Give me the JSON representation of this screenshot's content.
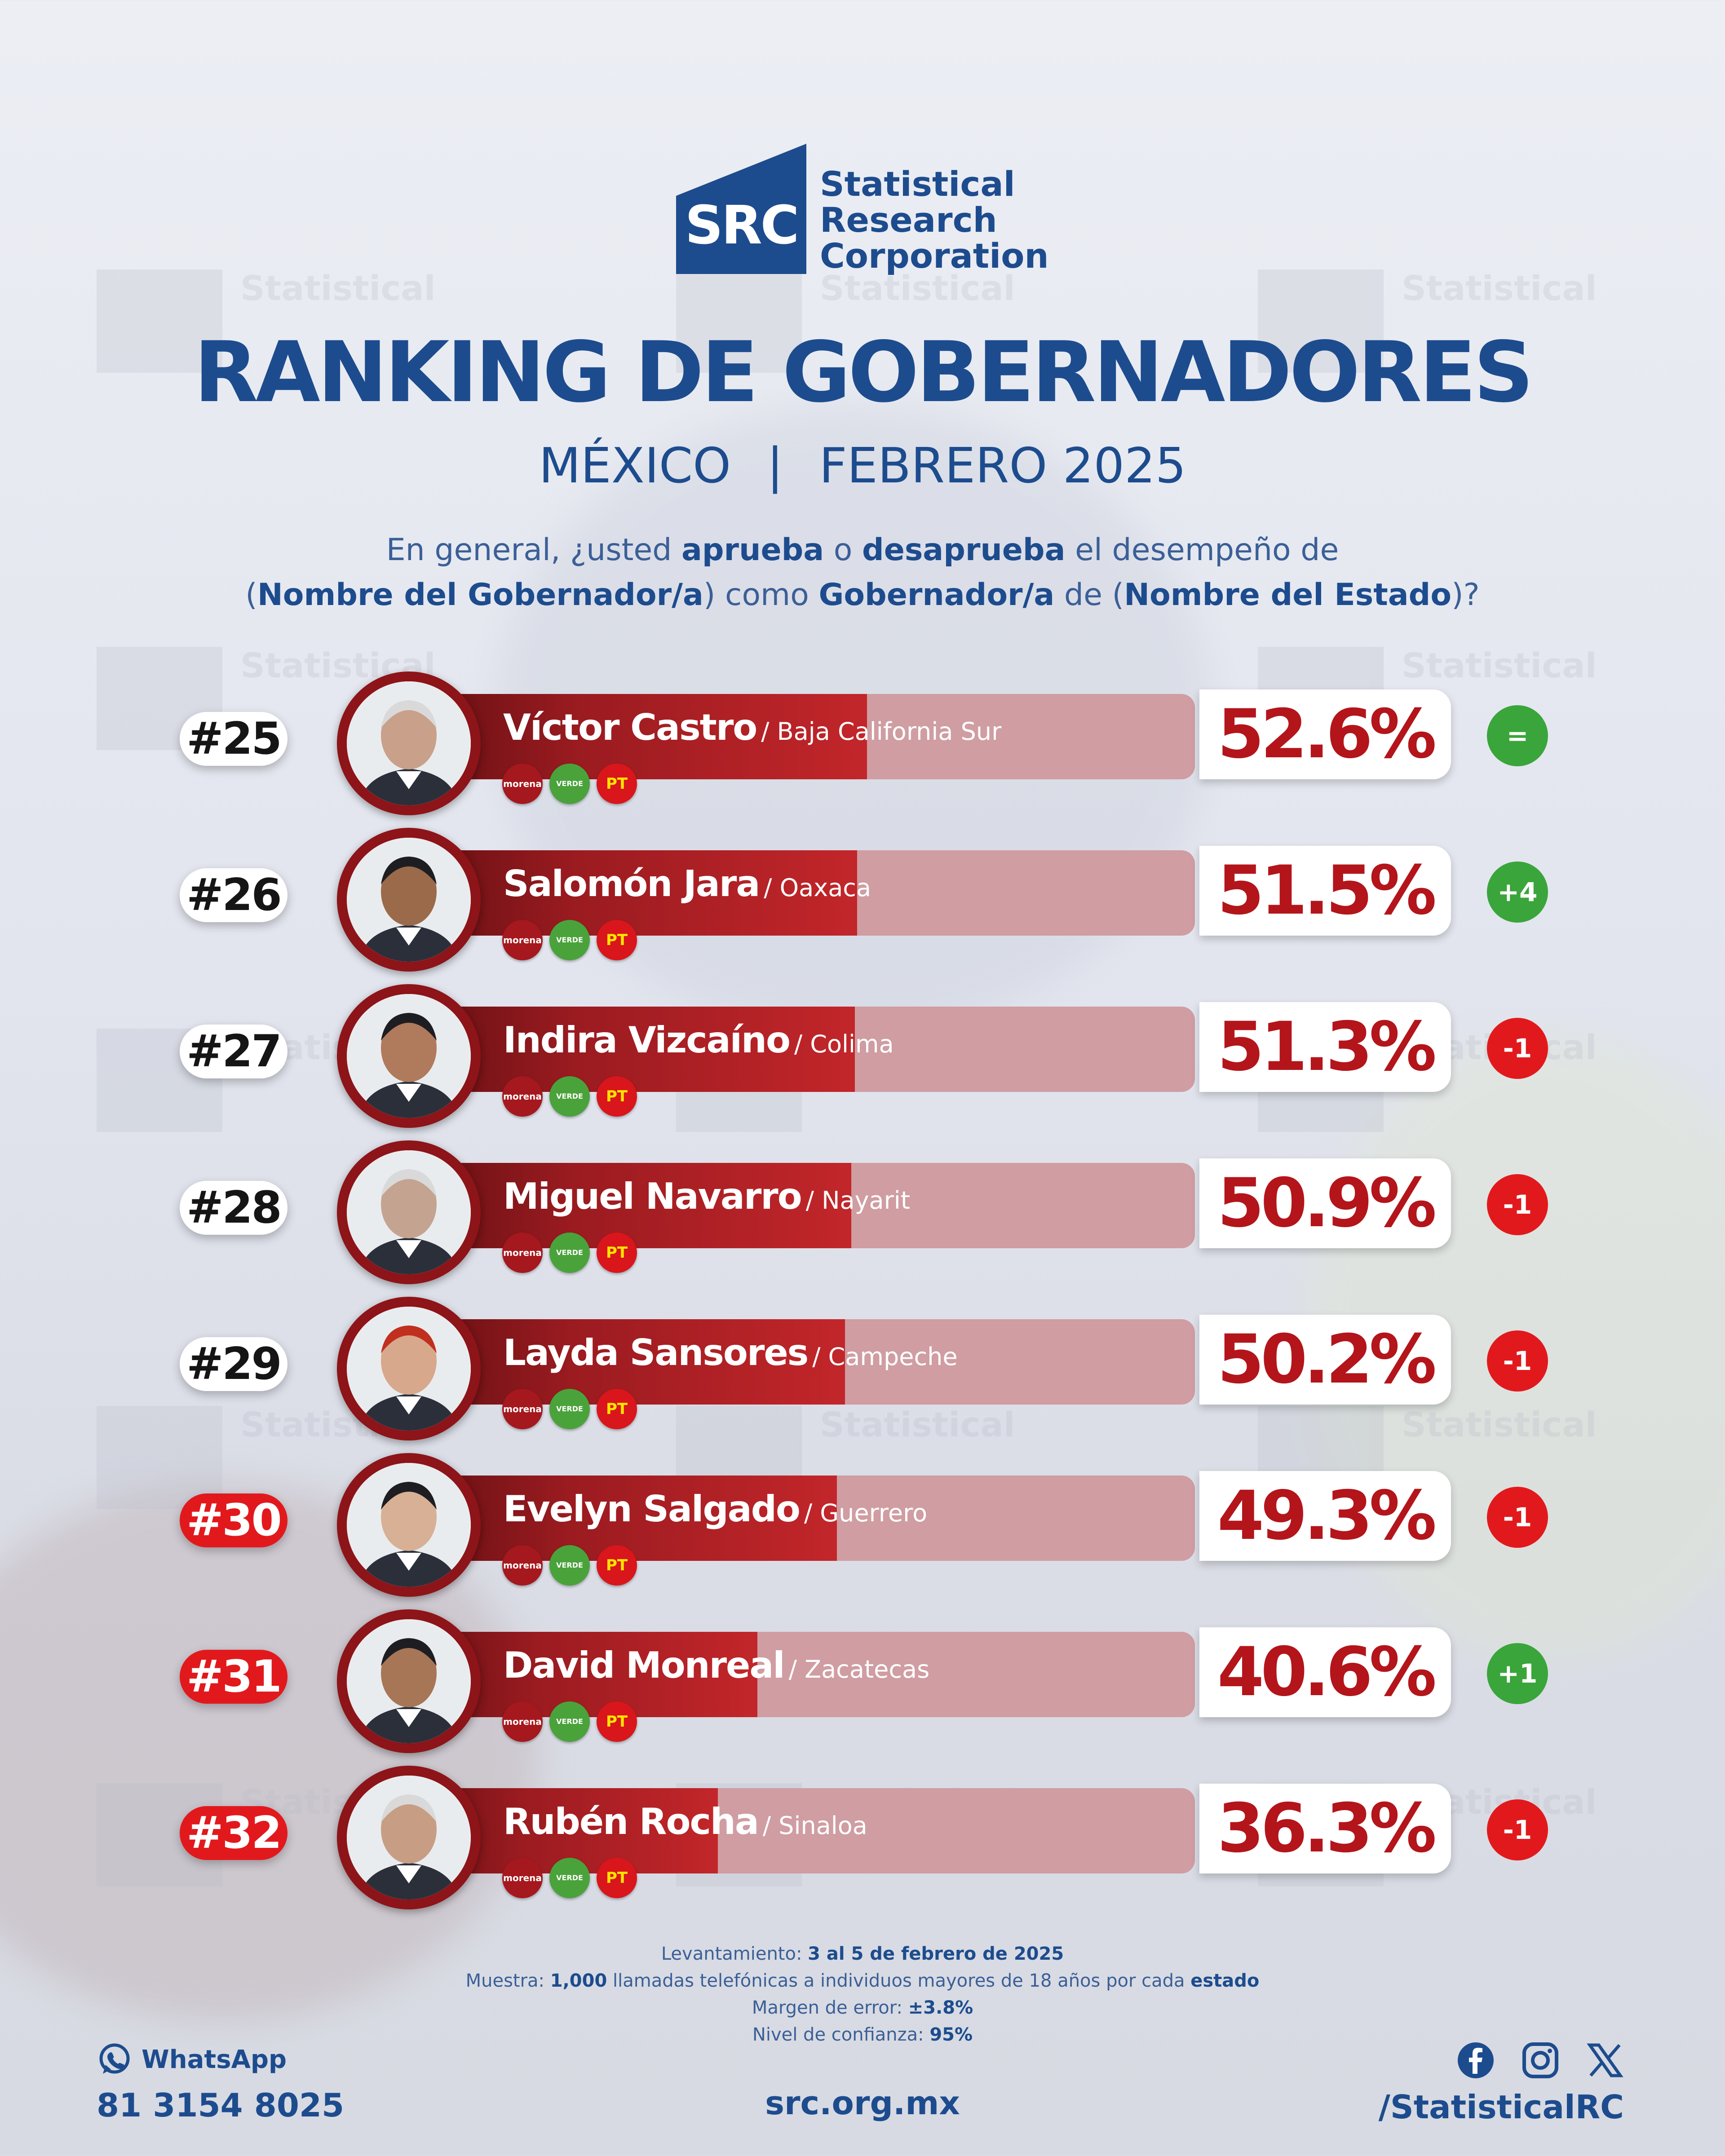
{
  "logo": {
    "abbr": "SRC",
    "line1": "Statistical",
    "line2": "Research",
    "line3": "Corporation"
  },
  "title": "RANKING DE GOBERNADORES",
  "subtitle": {
    "country": "MÉXICO",
    "separator": "|",
    "date": "FEBRERO 2025"
  },
  "question": {
    "p1": "En general, ¿usted ",
    "b1": "aprueba",
    "p2": " o ",
    "b2": "desaprueba",
    "p3": " el desempeño de",
    "p4": "(",
    "b3": "Nombre del Gobernador/a",
    "p5": ") como ",
    "b4": "Gobernador/a",
    "p6": " de (",
    "b5": "Nombre del Estado",
    "p7": ")?"
  },
  "parties": {
    "morena": "morena",
    "verde": "VERDE",
    "pt": "PT"
  },
  "colors": {
    "brand_blue": "#1d4c8e",
    "bar_red": "#b3151b",
    "bar_track": "#cf9da2",
    "up": "#3aa53a",
    "down": "#e2191c"
  },
  "chart_data": {
    "type": "bar",
    "title": "RANKING DE GOBERNADORES",
    "ylim": [
      0,
      100
    ],
    "categories": [
      "Víctor Castro",
      "Salomón Jara",
      "Indira Vizcaíno",
      "Miguel Navarro",
      "Layda Sansores",
      "Evelyn Salgado",
      "David Monreal",
      "Rubén Rocha"
    ],
    "values": [
      52.6,
      51.5,
      51.3,
      50.9,
      50.2,
      49.3,
      40.6,
      36.3
    ],
    "rows": [
      {
        "rank": "#25",
        "name": "Víctor Castro",
        "state": "/ Baja California Sur",
        "value": 52.6,
        "label": "52.6%",
        "change": "=",
        "trend": "same",
        "rank_style": "white"
      },
      {
        "rank": "#26",
        "name": "Salomón Jara",
        "state": "/ Oaxaca",
        "value": 51.5,
        "label": "51.5%",
        "change": "+4",
        "trend": "up",
        "rank_style": "white"
      },
      {
        "rank": "#27",
        "name": "Indira Vizcaíno",
        "state": "/ Colima",
        "value": 51.3,
        "label": "51.3%",
        "change": "-1",
        "trend": "down",
        "rank_style": "white"
      },
      {
        "rank": "#28",
        "name": "Miguel Navarro",
        "state": "/ Nayarit",
        "value": 50.9,
        "label": "50.9%",
        "change": "-1",
        "trend": "down",
        "rank_style": "white"
      },
      {
        "rank": "#29",
        "name": "Layda Sansores",
        "state": "/ Campeche",
        "value": 50.2,
        "label": "50.2%",
        "change": "-1",
        "trend": "down",
        "rank_style": "white"
      },
      {
        "rank": "#30",
        "name": "Evelyn Salgado",
        "state": "/ Guerrero",
        "value": 49.3,
        "label": "49.3%",
        "change": "-1",
        "trend": "down",
        "rank_style": "red"
      },
      {
        "rank": "#31",
        "name": "David Monreal",
        "state": "/ Zacatecas",
        "value": 40.6,
        "label": "40.6%",
        "change": "+1",
        "trend": "up",
        "rank_style": "red"
      },
      {
        "rank": "#32",
        "name": "Rubén Rocha",
        "state": "/ Sinaloa",
        "value": 36.3,
        "label": "36.3%",
        "change": "-1",
        "trend": "down",
        "rank_style": "red"
      }
    ]
  },
  "methodology": {
    "l1_label": "Levantamiento: ",
    "l1_value": "3 al 5 de febrero de 2025",
    "l2_label": "Muestra: ",
    "l2_value": "1,000",
    "l2_mid": " llamadas telefónicas a individuos mayores de 18 años por cada ",
    "l2_bold": "estado",
    "l3_label": "Margen de error: ",
    "l3_value": "±3.8%",
    "l4_label": "Nivel de confianza: ",
    "l4_value": "95%"
  },
  "footer": {
    "whatsapp_label": "WhatsApp",
    "phone": "81 3154 8025",
    "website": "src.org.mx",
    "handle": "/StatisticalRC",
    "icons": [
      "whatsapp-icon",
      "facebook-icon",
      "instagram-icon",
      "x-icon"
    ]
  }
}
